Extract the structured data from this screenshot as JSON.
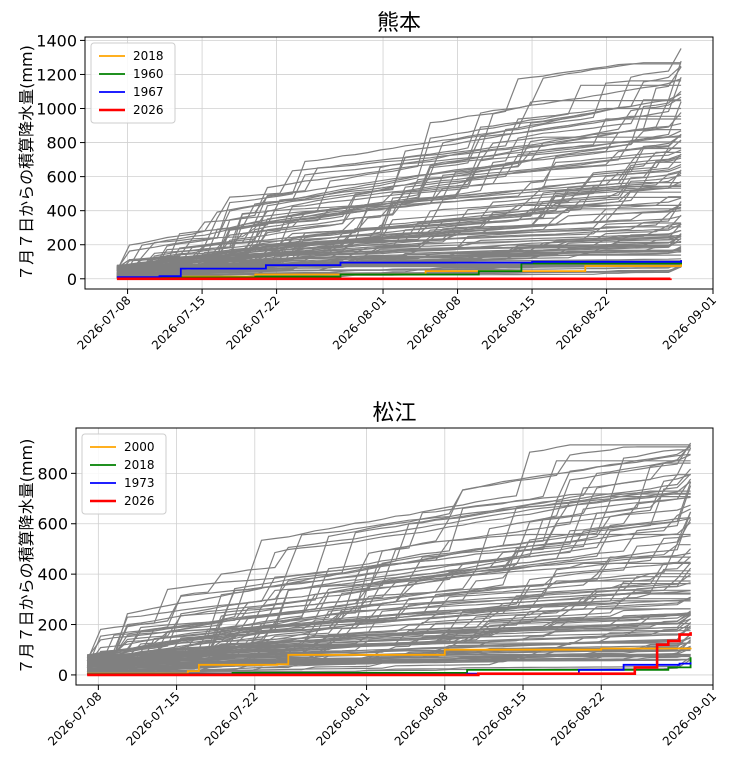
{
  "figure": {
    "ylabel": "７月７日からの積算降水量(mm)"
  },
  "chart_data": [
    {
      "type": "line",
      "title": "熊本",
      "xlabel": "",
      "ylabel": "７月７日からの積算降水量(mm)",
      "x_ticks": [
        "2026-07-08",
        "2026-07-15",
        "2026-07-22",
        "2026-08-01",
        "2026-08-08",
        "2026-08-15",
        "2026-08-22",
        "2026-09-01"
      ],
      "xlim": [
        "2026-07-04",
        "2026-09-01"
      ],
      "ylim": [
        -60,
        1420
      ],
      "y_ticks": [
        0,
        200,
        400,
        600,
        800,
        1000,
        1200,
        1400
      ],
      "grid": true,
      "legend": "top-left",
      "background_color": "#808080",
      "series": [
        {
          "name": "2018",
          "color": "#FFA500",
          "x": [
            "2026-07-07",
            "2026-07-13",
            "2026-07-20",
            "2026-08-05",
            "2026-08-20",
            "2026-08-29"
          ],
          "values": [
            2,
            12,
            25,
            45,
            75,
            110
          ]
        },
        {
          "name": "1960",
          "color": "#008000",
          "x": [
            "2026-07-07",
            "2026-07-20",
            "2026-07-28",
            "2026-08-10",
            "2026-08-14",
            "2026-08-29"
          ],
          "values": [
            8,
            12,
            25,
            45,
            90,
            105
          ]
        },
        {
          "name": "1967",
          "color": "#0000FF",
          "x": [
            "2026-07-07",
            "2026-07-11",
            "2026-07-13",
            "2026-07-21",
            "2026-07-28",
            "2026-08-15",
            "2026-08-29"
          ],
          "values": [
            10,
            15,
            60,
            80,
            95,
            100,
            110
          ]
        },
        {
          "name": "2026",
          "color": "#FF0000",
          "x": [
            "2026-07-07",
            "2026-08-28"
          ],
          "values": [
            0,
            2
          ]
        }
      ]
    },
    {
      "type": "line",
      "title": "松江",
      "xlabel": "",
      "ylabel": "７月７日からの積算降水量(mm)",
      "x_ticks": [
        "2026-07-08",
        "2026-07-15",
        "2026-07-22",
        "2026-08-01",
        "2026-08-08",
        "2026-08-15",
        "2026-08-22",
        "2026-09-01"
      ],
      "xlim": [
        "2026-07-06",
        "2026-09-01"
      ],
      "ylim": [
        -40,
        980
      ],
      "y_ticks": [
        0,
        200,
        400,
        600,
        800
      ],
      "grid": true,
      "legend": "top-left",
      "background_color": "#808080",
      "series": [
        {
          "name": "2000",
          "color": "#FFA500",
          "x": [
            "2026-07-07",
            "2026-07-16",
            "2026-07-17",
            "2026-07-24",
            "2026-07-25",
            "2026-08-08",
            "2026-08-22",
            "2026-08-30"
          ],
          "values": [
            5,
            15,
            40,
            42,
            80,
            100,
            105,
            108
          ]
        },
        {
          "name": "2018",
          "color": "#008000",
          "x": [
            "2026-07-07",
            "2026-07-20",
            "2026-08-10",
            "2026-08-28",
            "2026-08-30"
          ],
          "values": [
            3,
            8,
            20,
            30,
            70
          ]
        },
        {
          "name": "1973",
          "color": "#0000FF",
          "x": [
            "2026-07-07",
            "2026-08-10",
            "2026-08-20",
            "2026-08-24",
            "2026-08-29",
            "2026-08-30"
          ],
          "values": [
            2,
            5,
            20,
            40,
            45,
            50
          ]
        },
        {
          "name": "2026",
          "color": "#FF0000",
          "x": [
            "2026-07-07",
            "2026-08-11",
            "2026-08-25",
            "2026-08-27",
            "2026-08-28",
            "2026-08-29",
            "2026-08-30"
          ],
          "values": [
            0,
            5,
            30,
            120,
            135,
            160,
            170
          ]
        }
      ]
    }
  ]
}
